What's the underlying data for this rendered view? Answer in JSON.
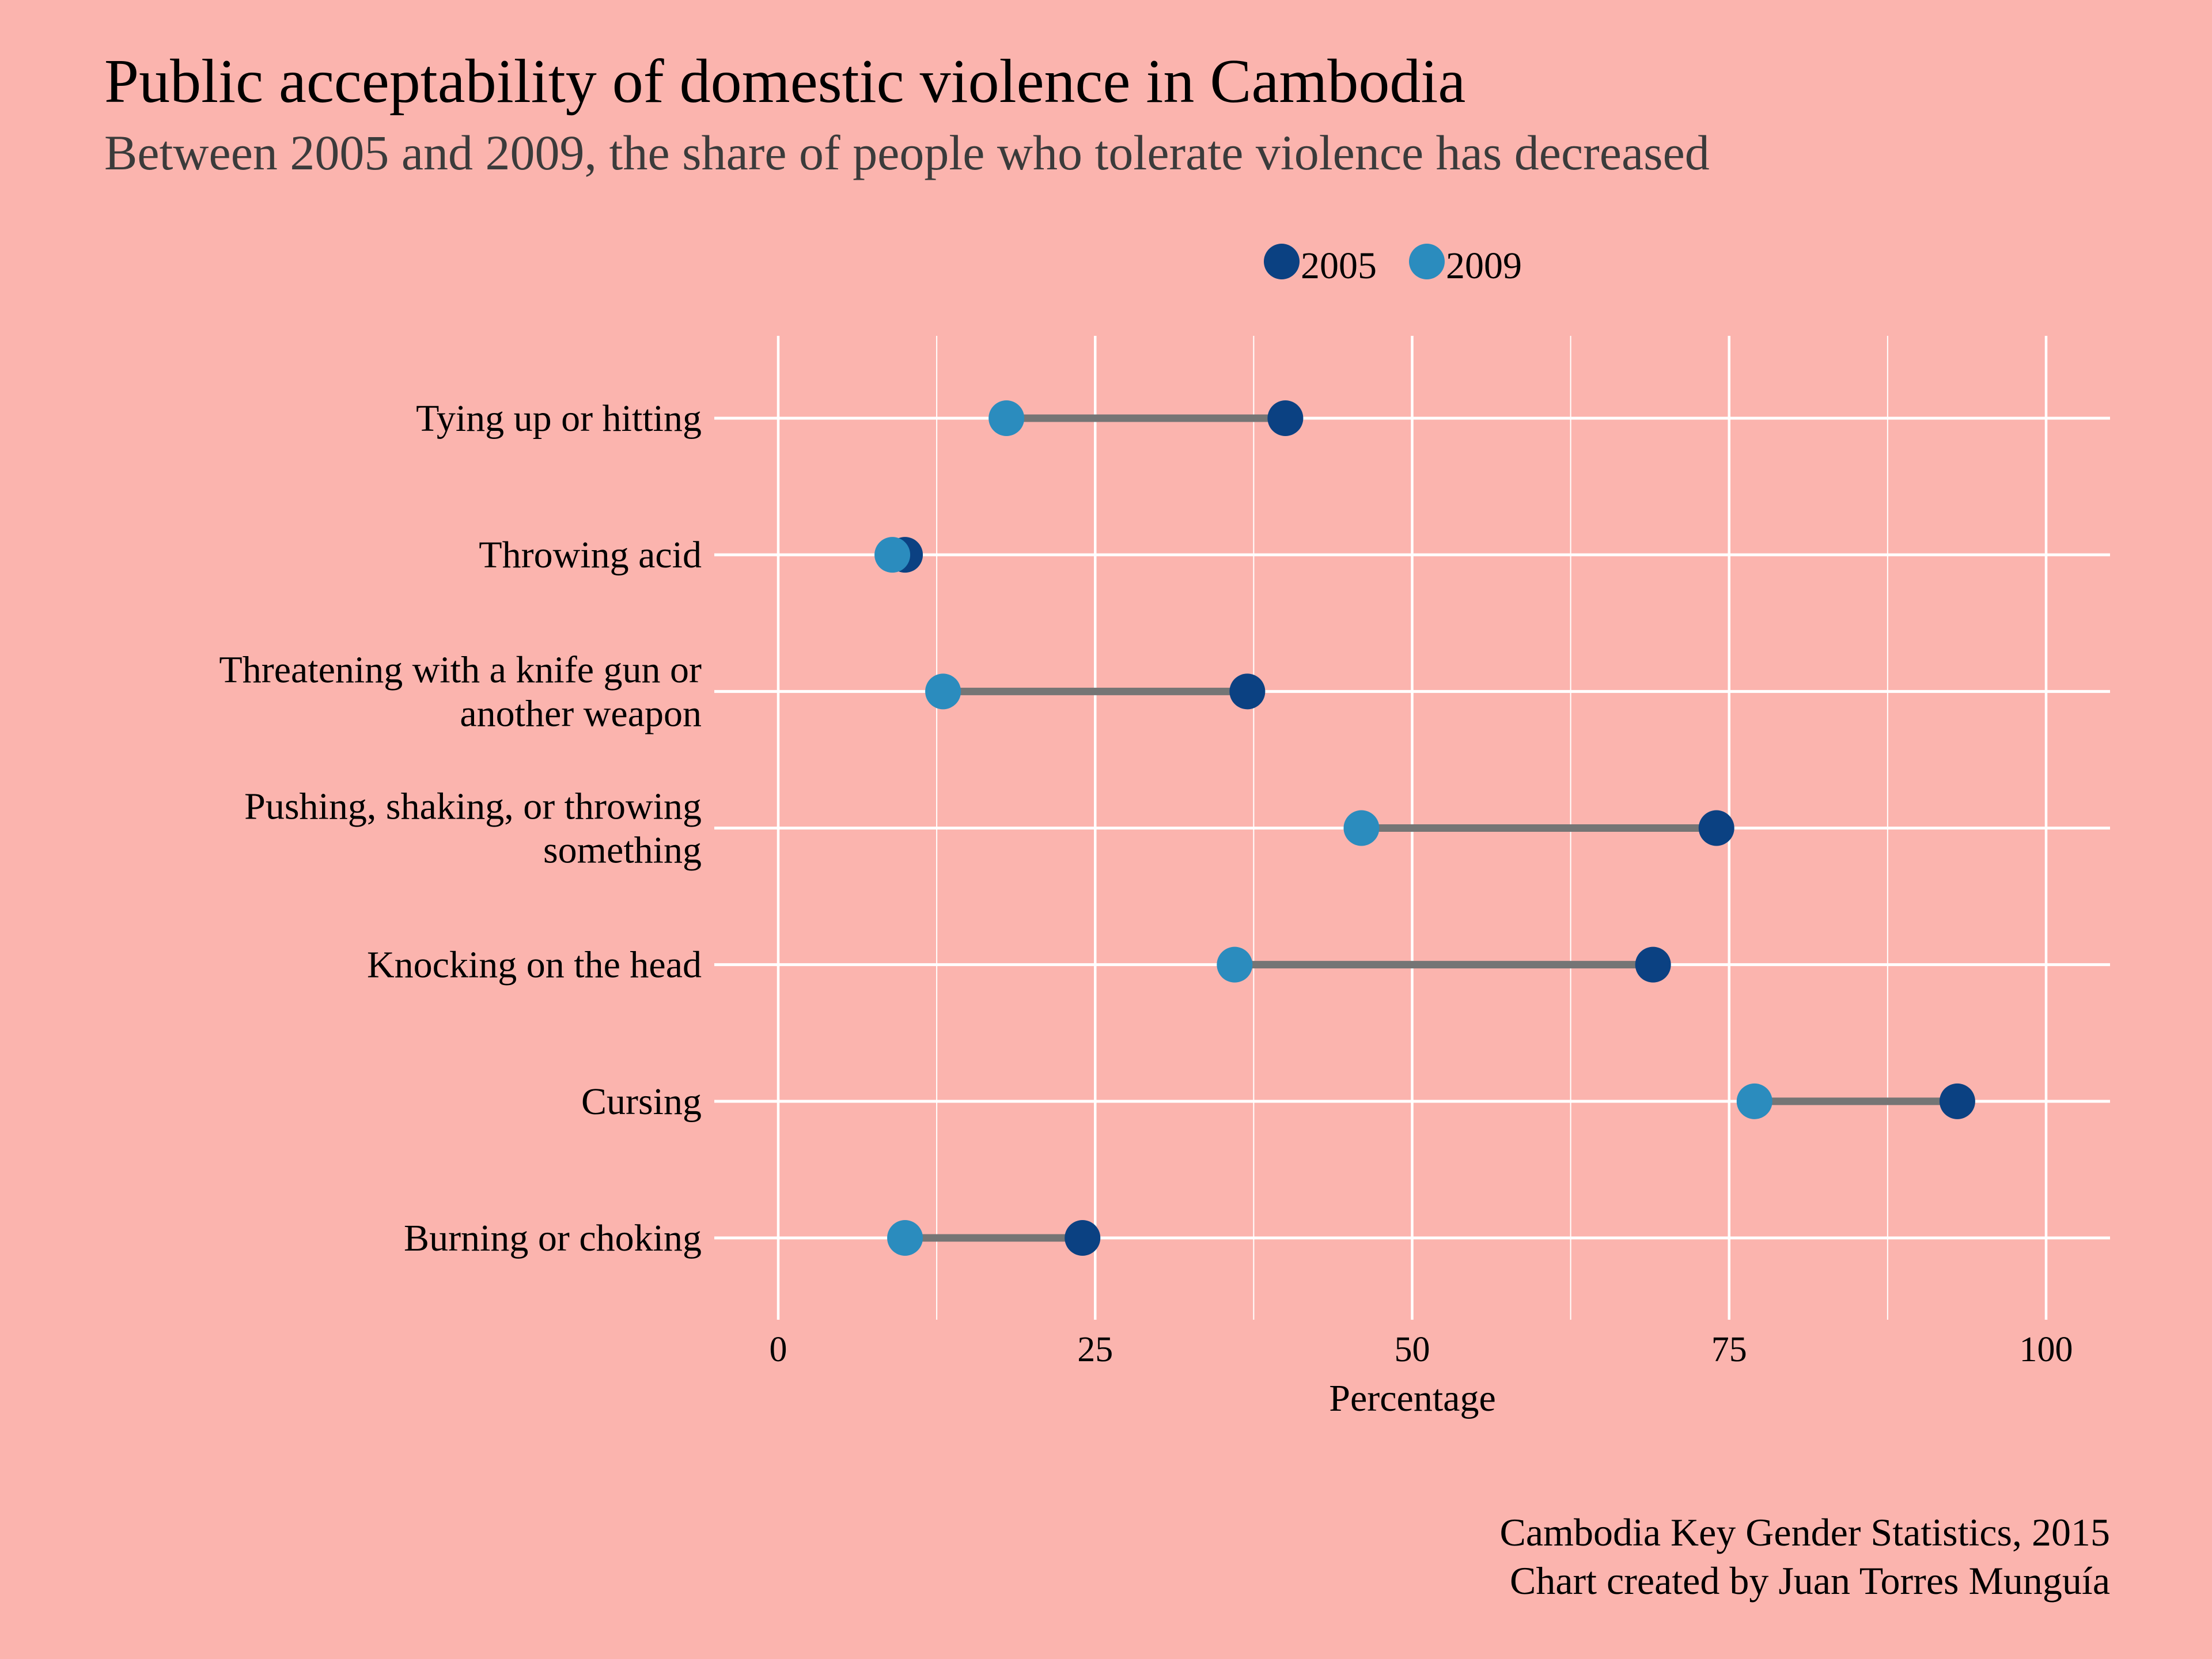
{
  "header": {
    "title": "Public acceptability of domestic violence in Cambodia",
    "subtitle": "Between 2005 and 2009, the share of people who tolerate violence has decreased"
  },
  "legend": {
    "items": [
      {
        "label": "2005",
        "color": "#0b4182"
      },
      {
        "label": "2009",
        "color": "#2b8cbe"
      }
    ]
  },
  "caption": {
    "line1": "Cambodia Key Gender Statistics, 2015",
    "line2": "Chart created by Juan Torres Munguía"
  },
  "colors": {
    "background": "#fbb4ae",
    "grid": "#ffffff",
    "segment": "#757575",
    "series_2005": "#0b4182",
    "series_2009": "#2b8cbe"
  },
  "chart_data": {
    "type": "dumbbell",
    "title": "Public acceptability of domestic violence in Cambodia",
    "subtitle": "Between 2005 and 2009, the share of people who tolerate violence has decreased",
    "xlabel": "Percentage",
    "ylabel": "",
    "xlim": [
      0,
      100
    ],
    "x_ticks": [
      0,
      25,
      50,
      75,
      100
    ],
    "x_tick_labels": [
      "0",
      "25",
      "50",
      "75",
      "100"
    ],
    "x_minor_ticks": [
      12.5,
      37.5,
      62.5,
      87.5
    ],
    "grid": true,
    "legend_position": "top",
    "categories": [
      [
        "Tying up or hitting"
      ],
      [
        "Throwing acid"
      ],
      [
        "Threatening with a knife gun or",
        "another weapon"
      ],
      [
        "Pushing, shaking, or throwing",
        "something"
      ],
      [
        "Knocking on the head"
      ],
      [
        "Cursing"
      ],
      [
        "Burning or choking"
      ]
    ],
    "series": [
      {
        "name": "2005",
        "values": [
          40,
          10,
          37,
          74,
          69,
          93,
          24
        ]
      },
      {
        "name": "2009",
        "values": [
          18,
          9,
          13,
          46,
          36,
          77,
          10
        ]
      }
    ]
  }
}
